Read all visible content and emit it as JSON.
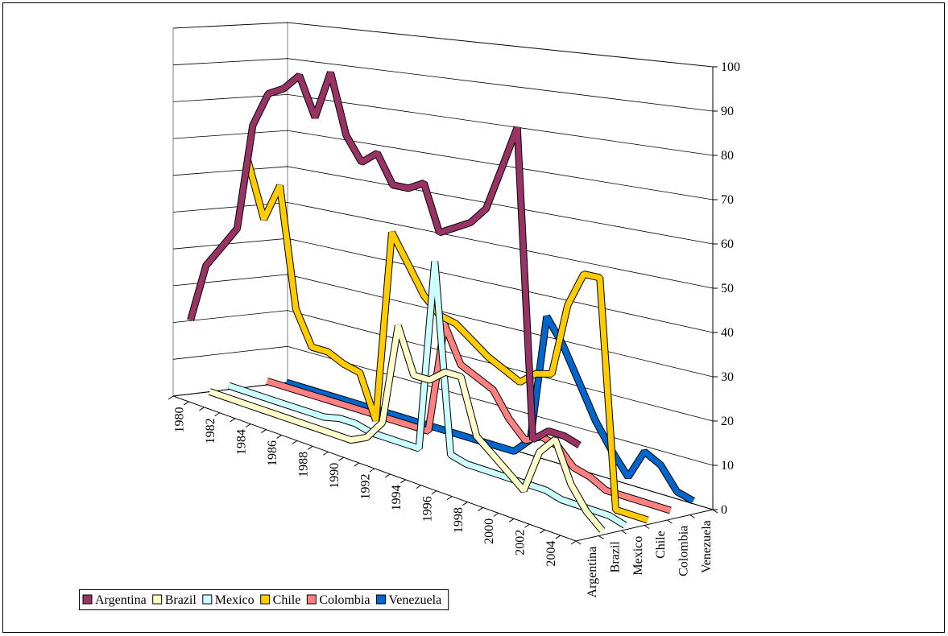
{
  "chart_data": {
    "type": "line3d",
    "categories": [
      "1980",
      null,
      "1982",
      null,
      "1984",
      null,
      "1986",
      null,
      "1988",
      null,
      "1990",
      null,
      "1992",
      null,
      "1994",
      null,
      "1996",
      null,
      "1998",
      null,
      "2000",
      null,
      "2002",
      null,
      "2004",
      null
    ],
    "series": [
      {
        "name": "Argentina",
        "color": "#993366",
        "values": [
          21,
          37,
          43,
          49,
          77,
          86,
          88,
          92,
          82,
          94,
          79,
          73,
          76,
          69,
          69,
          71,
          60,
          62,
          64,
          68,
          78,
          88,
          18,
          21,
          21,
          20
        ]
      },
      {
        "name": "Brazil",
        "color": "#ffffcc",
        "values": [
          1,
          1,
          1,
          1,
          1,
          1,
          1,
          1,
          1,
          1,
          3,
          8,
          33,
          22,
          22,
          25,
          25,
          12,
          9,
          6,
          3,
          13,
          17,
          8,
          3,
          0
        ]
      },
      {
        "name": "Mexico",
        "color": "#ccffff",
        "values": [
          2,
          2,
          2,
          2,
          2,
          2,
          2,
          3,
          3,
          2,
          2,
          2,
          2,
          49,
          3,
          2,
          2,
          2,
          2,
          2,
          2,
          1,
          1,
          1,
          1,
          0
        ]
      },
      {
        "name": "Chile",
        "color": "#ffcc00",
        "values": [
          63,
          48,
          58,
          26,
          17,
          17,
          15,
          14,
          3,
          52,
          45,
          38,
          34,
          33,
          30,
          27,
          25,
          23,
          26,
          27,
          44,
          52,
          52,
          0,
          0,
          0
        ]
      },
      {
        "name": "Colombia",
        "color": "#ff8080",
        "values": [
          2,
          2,
          2,
          2,
          2,
          2,
          2,
          2,
          2,
          2,
          2,
          30,
          21,
          19,
          17,
          11,
          7,
          9,
          8,
          4,
          3,
          1,
          1,
          1,
          1,
          1
        ]
      },
      {
        "name": "Venezuela",
        "color": "#0066cc",
        "values": [
          1,
          1,
          1,
          1,
          1,
          1,
          1,
          1,
          1,
          1,
          1,
          1,
          1,
          1,
          1,
          5,
          36,
          30,
          22,
          14,
          8,
          3,
          10,
          8,
          3,
          2
        ]
      }
    ],
    "ylim": [
      0,
      100
    ],
    "yticks": [
      0,
      10,
      20,
      30,
      40,
      50,
      60,
      70,
      80,
      90,
      100
    ],
    "grid": true,
    "legend_position": "bottom-left"
  }
}
